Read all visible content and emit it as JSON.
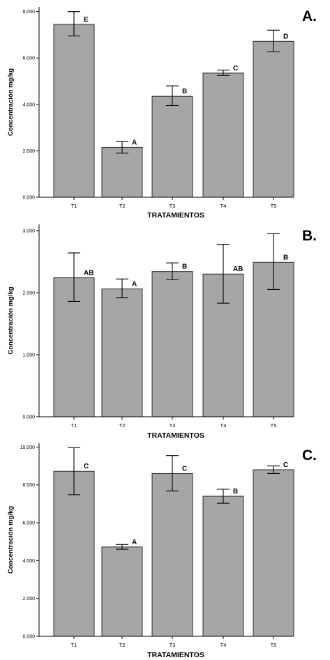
{
  "chart_data": [
    {
      "type": "bar",
      "panel_label": "A.",
      "categories": [
        "T1",
        "T2",
        "T3",
        "T4",
        "T5"
      ],
      "values": [
        7.45,
        2.15,
        4.35,
        5.35,
        6.72
      ],
      "error_low": [
        6.95,
        1.9,
        3.95,
        5.25,
        6.27
      ],
      "error_high": [
        8.0,
        2.4,
        4.8,
        5.48,
        7.2
      ],
      "letters": [
        "E",
        "A",
        "B",
        "C",
        "D"
      ],
      "ylabel": "Concentración mg/kg",
      "xlabel": "TRATAMIENTOS",
      "ylim": [
        0,
        8.2
      ],
      "yticks": [
        0,
        2,
        4,
        6,
        8
      ],
      "ytick_labels": [
        "0.000",
        "2.000",
        "4.000",
        "6.000",
        "8.000"
      ],
      "grid": false
    },
    {
      "type": "bar",
      "panel_label": "B.",
      "categories": [
        "T1",
        "T2",
        "T3",
        "T4",
        "T5"
      ],
      "values": [
        2.24,
        2.06,
        2.34,
        2.3,
        2.49
      ],
      "error_low": [
        1.86,
        1.92,
        2.21,
        1.83,
        2.05
      ],
      "error_high": [
        2.64,
        2.22,
        2.48,
        2.78,
        2.95
      ],
      "letters": [
        "AB",
        "A",
        "B",
        "AB",
        "B"
      ],
      "ylabel": "Concentración mg/kg",
      "xlabel": "TRATAMIENTOS",
      "ylim": [
        0,
        3.1
      ],
      "yticks": [
        0,
        1,
        2,
        3
      ],
      "ytick_labels": [
        "0.000",
        "1.000",
        "2.000",
        "3.000"
      ],
      "grid": false
    },
    {
      "type": "bar",
      "panel_label": "C.",
      "categories": [
        "T1",
        "T2",
        "T3",
        "T4",
        "T5"
      ],
      "values": [
        8.72,
        4.72,
        8.6,
        7.4,
        8.8
      ],
      "error_low": [
        7.48,
        4.6,
        7.68,
        7.03,
        8.6
      ],
      "error_high": [
        9.97,
        4.85,
        9.55,
        7.77,
        9.0
      ],
      "letters": [
        "C",
        "A",
        "C",
        "B",
        "C"
      ],
      "ylabel": "Concentración mg/kg",
      "xlabel": "TRATAMIENTOS",
      "ylim": [
        0,
        10.2
      ],
      "yticks": [
        0,
        2,
        4,
        6,
        8,
        10
      ],
      "ytick_labels": [
        "0.000",
        "2.000",
        "4.000",
        "6.000",
        "8.000",
        "10.000"
      ],
      "grid": false
    }
  ]
}
